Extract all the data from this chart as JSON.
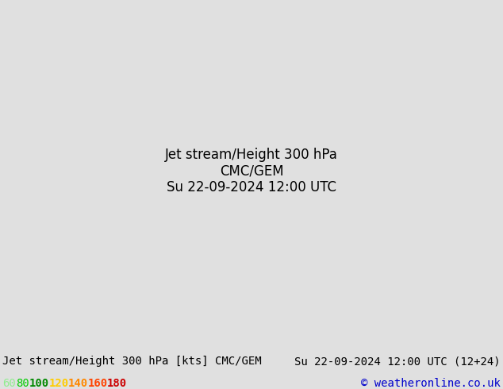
{
  "title_left": "Jet stream/Height 300 hPa [kts] CMC/GEM",
  "title_right": "Su 22-09-2024 12:00 UTC (12+24)",
  "copyright": "© weatheronline.co.uk",
  "legend_values": [
    "60",
    "80",
    "100",
    "120",
    "140",
    "160",
    "180"
  ],
  "legend_colors": [
    "#90ee90",
    "#00cc00",
    "#008800",
    "#ffcc00",
    "#ff8800",
    "#ff4400",
    "#cc0000"
  ],
  "background_color": "#e8e8e8",
  "map_bg_color": "#d0d0d0",
  "land_color": "#c8e6c8",
  "water_color": "#b0c4de",
  "title_fontsize": 10,
  "figsize": [
    6.34,
    4.9
  ],
  "dpi": 100
}
